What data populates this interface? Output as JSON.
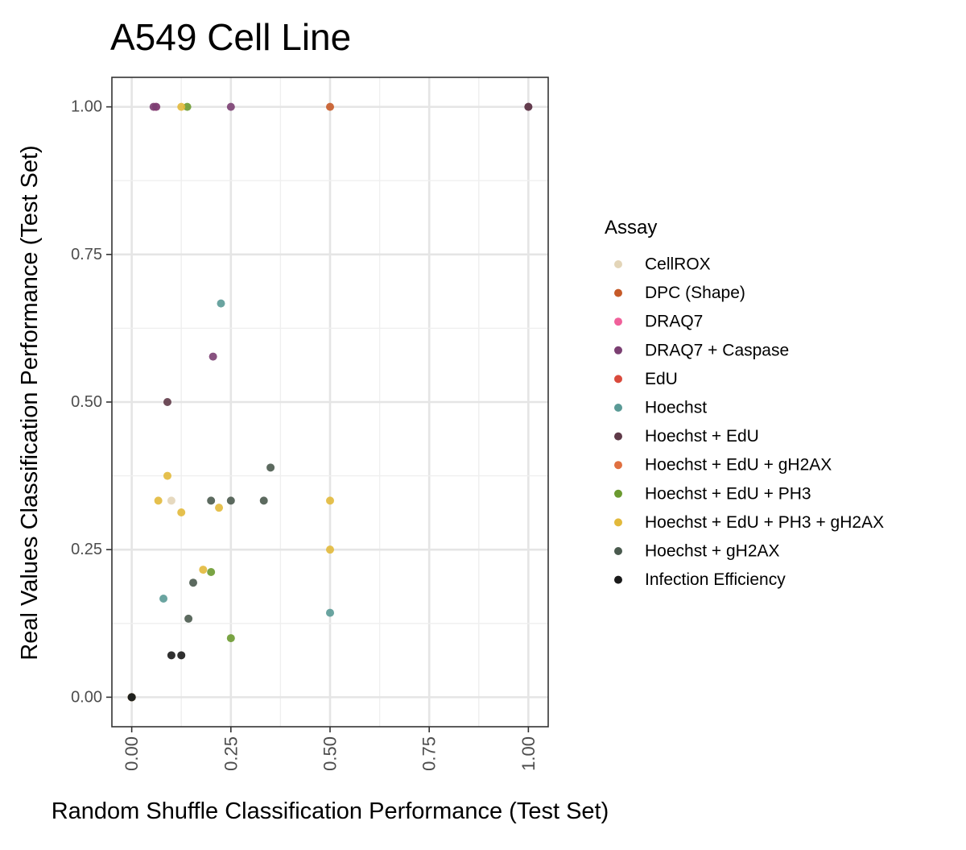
{
  "chart_data": {
    "type": "scatter",
    "title": "A549 Cell Line",
    "xlabel": "Random Shuffle Classification Performance (Test Set)",
    "ylabel": "Real Values Classification Performance (Test Set)",
    "xlim": [
      -0.05,
      1.05
    ],
    "ylim": [
      -0.05,
      1.05
    ],
    "x_ticks": [
      {
        "value": 0.0,
        "label": "0.00"
      },
      {
        "value": 0.25,
        "label": "0.25"
      },
      {
        "value": 0.5,
        "label": "0.50"
      },
      {
        "value": 0.75,
        "label": "0.75"
      },
      {
        "value": 1.0,
        "label": "1.00"
      }
    ],
    "y_ticks": [
      {
        "value": 0.0,
        "label": "0.00"
      },
      {
        "value": 0.25,
        "label": "0.25"
      },
      {
        "value": 0.5,
        "label": "0.50"
      },
      {
        "value": 0.75,
        "label": "0.75"
      },
      {
        "value": 1.0,
        "label": "1.00"
      }
    ],
    "x_tick_rotation": "vertical",
    "grid": true,
    "legend_title": "Assay",
    "legend_position": "right",
    "series": [
      {
        "name": "CellROX",
        "color": "#e3d5b8",
        "points": [
          [
            0.1,
            0.333
          ],
          [
            0.0,
            0.0
          ]
        ]
      },
      {
        "name": "DPC (Shape)",
        "color": "#c65a28",
        "points": [
          [
            0.5,
            1.0
          ],
          [
            0.0,
            0.0
          ]
        ]
      },
      {
        "name": "DRAQ7",
        "color": "#f0609a",
        "points": [
          [
            0.06,
            1.0
          ],
          [
            0.0,
            0.0
          ]
        ]
      },
      {
        "name": "DRAQ7 + Caspase",
        "color": "#7b3f72",
        "points": [
          [
            0.055,
            1.0
          ],
          [
            0.062,
            1.0
          ],
          [
            0.25,
            1.0
          ],
          [
            0.205,
            0.577
          ],
          [
            1.0,
            1.0
          ],
          [
            0.0,
            0.0
          ]
        ]
      },
      {
        "name": "EdU",
        "color": "#d94a3c",
        "points": [
          [
            0.0,
            0.0
          ]
        ]
      },
      {
        "name": "Hoechst",
        "color": "#5a9a96",
        "points": [
          [
            0.225,
            0.667
          ],
          [
            0.08,
            0.167
          ],
          [
            0.5,
            0.143
          ],
          [
            0.0,
            0.0
          ]
        ]
      },
      {
        "name": "Hoechst + EdU",
        "color": "#5f3a48",
        "points": [
          [
            0.09,
            0.5
          ],
          [
            1.0,
            1.0
          ],
          [
            0.0,
            0.0
          ]
        ]
      },
      {
        "name": "Hoechst + EdU + gH2AX",
        "color": "#e07040",
        "points": [
          [
            0.0,
            0.0
          ]
        ]
      },
      {
        "name": "Hoechst + EdU + PH3",
        "color": "#6b9a30",
        "points": [
          [
            0.14,
            1.0
          ],
          [
            0.2,
            0.212
          ],
          [
            0.25,
            0.1
          ],
          [
            0.0,
            0.0
          ]
        ]
      },
      {
        "name": "Hoechst + EdU + PH3 + gH2AX",
        "color": "#e2b93b",
        "points": [
          [
            0.125,
            1.0
          ],
          [
            0.09,
            0.375
          ],
          [
            0.067,
            0.333
          ],
          [
            0.125,
            0.313
          ],
          [
            0.22,
            0.321
          ],
          [
            0.5,
            0.333
          ],
          [
            0.5,
            0.25
          ],
          [
            0.18,
            0.216
          ],
          [
            0.0,
            0.0
          ]
        ]
      },
      {
        "name": "Hoechst + gH2AX",
        "color": "#4a5a4e",
        "points": [
          [
            0.2,
            0.333
          ],
          [
            0.25,
            0.333
          ],
          [
            0.333,
            0.333
          ],
          [
            0.35,
            0.389
          ],
          [
            0.155,
            0.194
          ],
          [
            0.143,
            0.133
          ],
          [
            0.0,
            0.0
          ]
        ]
      },
      {
        "name": "Infection Efficiency",
        "color": "#1a1a1a",
        "points": [
          [
            0.1,
            0.071
          ],
          [
            0.125,
            0.071
          ],
          [
            0.0,
            0.0
          ]
        ]
      }
    ]
  }
}
